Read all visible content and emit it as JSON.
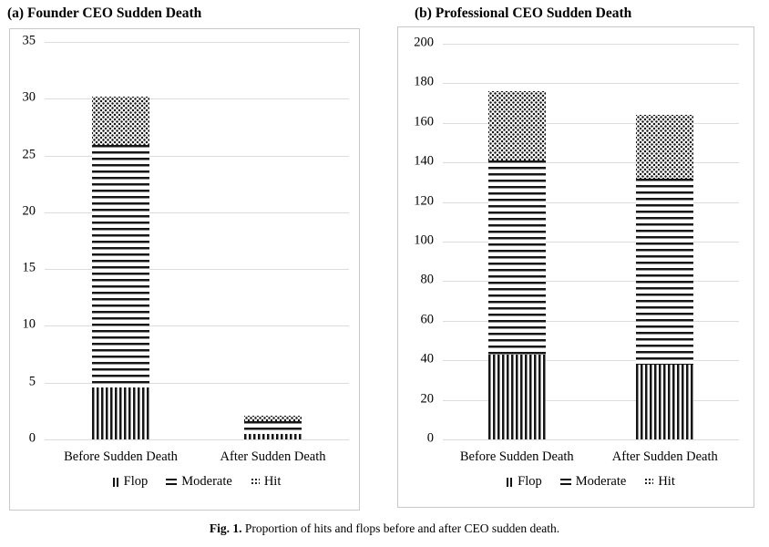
{
  "figure": {
    "caption_label": "Fig. 1.",
    "caption_text": " Proportion of hits and flops before and after CEO sudden death."
  },
  "colors": {
    "ink": "#161616",
    "gridline": "#dcdcdc",
    "box_border": "#c9c9c9",
    "background": "#ffffff"
  },
  "chart_data": [
    {
      "type": "bar",
      "stacked": true,
      "title": "(a) Founder CEO Sudden Death",
      "categories": [
        "Before Sudden Death",
        "After Sudden Death"
      ],
      "series": [
        {
          "name": "Flop",
          "pattern": "vertical-stripes",
          "values": [
            4.6,
            0.5
          ]
        },
        {
          "name": "Moderate",
          "pattern": "horizontal-stripes",
          "values": [
            21.3,
            1.1
          ]
        },
        {
          "name": "Hit",
          "pattern": "dots",
          "values": [
            4.3,
            0.5
          ]
        }
      ],
      "xlabel": "",
      "ylabel": "",
      "ylim": [
        0,
        35
      ],
      "ytick_step": 5,
      "grid": true,
      "legend_position": "bottom"
    },
    {
      "type": "bar",
      "stacked": true,
      "title": "(b) Professional CEO Sudden Death",
      "categories": [
        "Before Sudden Death",
        "After Sudden Death"
      ],
      "series": [
        {
          "name": "Flop",
          "pattern": "vertical-stripes",
          "values": [
            43,
            38
          ]
        },
        {
          "name": "Moderate",
          "pattern": "horizontal-stripes",
          "values": [
            98,
            94
          ]
        },
        {
          "name": "Hit",
          "pattern": "dots",
          "values": [
            35,
            32
          ]
        }
      ],
      "xlabel": "",
      "ylabel": "",
      "ylim": [
        0,
        200
      ],
      "ytick_step": 20,
      "grid": true,
      "legend_position": "bottom"
    }
  ]
}
